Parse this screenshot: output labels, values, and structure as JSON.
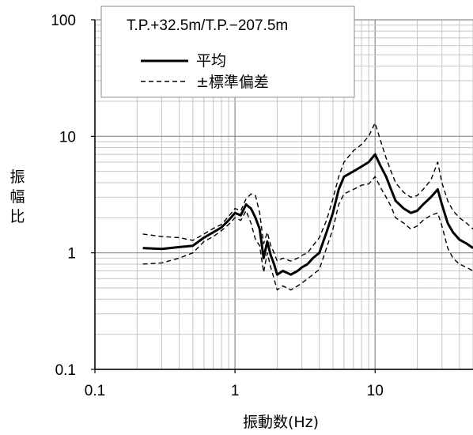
{
  "chart_data": {
    "type": "line",
    "title": "T.P.+32.5m/T.P.−207.5m",
    "xlabel": "振動数(Hz)",
    "ylabel": "振幅比",
    "xscale": "log",
    "yscale": "log",
    "xlim": [
      0.1,
      50
    ],
    "ylim": [
      0.1,
      100
    ],
    "grid": true,
    "legend_position": "top-left",
    "x_ticks": [
      "0.1",
      "1",
      "10"
    ],
    "y_ticks": [
      "0.1",
      "1",
      "10",
      "100"
    ],
    "series": [
      {
        "name": "平均",
        "style": "solid",
        "color": "#000000",
        "x": [
          0.22,
          0.3,
          0.4,
          0.5,
          0.6,
          0.7,
          0.8,
          0.9,
          1.0,
          1.1,
          1.2,
          1.3,
          1.4,
          1.5,
          1.6,
          1.7,
          1.8,
          1.9,
          2.0,
          2.2,
          2.5,
          2.8,
          3.0,
          3.3,
          3.6,
          4.0,
          4.5,
          5.0,
          5.5,
          6.0,
          7.0,
          8.0,
          9.0,
          10.0,
          11.0,
          12.0,
          13.0,
          14.0,
          16.0,
          18.0,
          20.0,
          22.0,
          25.0,
          28.0,
          30.0,
          33.0,
          36.0,
          40.0,
          45.0,
          50.0
        ],
        "values": [
          1.1,
          1.08,
          1.12,
          1.15,
          1.35,
          1.5,
          1.65,
          1.9,
          2.2,
          2.1,
          2.6,
          2.4,
          2.0,
          1.6,
          0.9,
          1.25,
          0.95,
          0.8,
          0.65,
          0.7,
          0.65,
          0.7,
          0.75,
          0.8,
          0.9,
          1.0,
          1.5,
          2.2,
          3.5,
          4.5,
          5.0,
          5.5,
          6.0,
          7.0,
          5.5,
          4.5,
          3.5,
          2.8,
          2.4,
          2.2,
          2.3,
          2.6,
          3.0,
          3.5,
          2.6,
          1.8,
          1.5,
          1.3,
          1.2,
          1.1
        ]
      },
      {
        "name": "±標準偏差",
        "style": "dashed",
        "color": "#000000",
        "x": [
          0.22,
          0.3,
          0.4,
          0.5,
          0.6,
          0.7,
          0.8,
          0.9,
          1.0,
          1.1,
          1.2,
          1.3,
          1.4,
          1.5,
          1.6,
          1.7,
          1.8,
          1.9,
          2.0,
          2.2,
          2.5,
          2.8,
          3.0,
          3.3,
          3.6,
          4.0,
          4.5,
          5.0,
          5.5,
          6.0,
          7.0,
          8.0,
          9.0,
          10.0,
          11.0,
          12.0,
          13.0,
          14.0,
          16.0,
          18.0,
          20.0,
          22.0,
          25.0,
          28.0,
          30.0,
          33.0,
          36.0,
          40.0,
          45.0,
          50.0
        ],
        "values": [
          1.45,
          1.38,
          1.35,
          1.28,
          1.45,
          1.62,
          1.75,
          2.05,
          2.4,
          2.3,
          2.9,
          3.2,
          3.1,
          2.2,
          1.2,
          1.5,
          1.15,
          1.0,
          0.85,
          0.9,
          0.85,
          0.9,
          0.95,
          1.0,
          1.15,
          1.35,
          1.9,
          2.9,
          4.5,
          6.0,
          7.5,
          8.5,
          10.0,
          13.0,
          9.0,
          6.5,
          5.0,
          4.0,
          3.3,
          3.0,
          3.1,
          3.5,
          4.2,
          6.0,
          4.0,
          2.8,
          2.3,
          2.0,
          1.8,
          1.6
        ]
      },
      {
        "name": "",
        "style": "dashed",
        "color": "#000000",
        "x": [
          0.22,
          0.3,
          0.4,
          0.5,
          0.6,
          0.7,
          0.8,
          0.9,
          1.0,
          1.1,
          1.2,
          1.3,
          1.4,
          1.5,
          1.6,
          1.7,
          1.8,
          1.9,
          2.0,
          2.2,
          2.5,
          2.8,
          3.0,
          3.3,
          3.6,
          4.0,
          4.5,
          5.0,
          5.5,
          6.0,
          7.0,
          8.0,
          9.0,
          10.0,
          11.0,
          12.0,
          13.0,
          14.0,
          16.0,
          18.0,
          20.0,
          22.0,
          25.0,
          28.0,
          30.0,
          33.0,
          36.0,
          40.0,
          45.0,
          50.0
        ],
        "values": [
          0.8,
          0.82,
          0.9,
          1.0,
          1.25,
          1.38,
          1.55,
          1.75,
          2.0,
          1.9,
          2.3,
          1.8,
          1.3,
          1.15,
          0.68,
          1.0,
          0.75,
          0.6,
          0.48,
          0.52,
          0.48,
          0.52,
          0.55,
          0.6,
          0.65,
          0.72,
          1.1,
          1.6,
          2.6,
          3.2,
          3.5,
          3.8,
          3.9,
          4.5,
          3.6,
          3.0,
          2.5,
          2.0,
          1.8,
          1.6,
          1.7,
          1.9,
          2.1,
          2.2,
          1.7,
          1.1,
          0.9,
          0.8,
          0.75,
          0.7
        ]
      }
    ]
  }
}
